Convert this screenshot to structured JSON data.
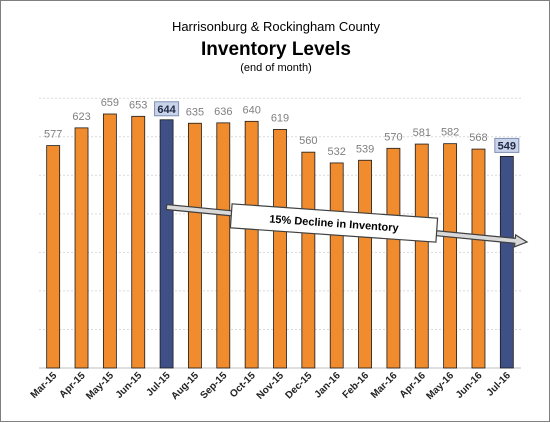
{
  "chart_data": {
    "type": "bar",
    "title": "Harrisonburg & Rockingham County",
    "subtitle": "Inventory Levels",
    "note": "(end of month)",
    "categories": [
      "Mar-15",
      "Apr-15",
      "May-15",
      "Jun-15",
      "Jul-15",
      "Aug-15",
      "Sep-15",
      "Oct-15",
      "Nov-15",
      "Dec-15",
      "Jan-16",
      "Feb-16",
      "Mar-16",
      "Apr-16",
      "May-16",
      "Jun-16",
      "Jul-16"
    ],
    "values": [
      577,
      623,
      659,
      653,
      644,
      635,
      636,
      640,
      619,
      560,
      532,
      539,
      570,
      581,
      582,
      568,
      549
    ],
    "highlighted": [
      "Jul-15",
      "Jul-16"
    ],
    "bar_color": "#f08c2e",
    "highlight_color": "#3f5087",
    "ylim": [
      0,
      700
    ],
    "grid": true,
    "xlabel": "",
    "ylabel": "",
    "annotation": "15% Decline in Inventory"
  }
}
